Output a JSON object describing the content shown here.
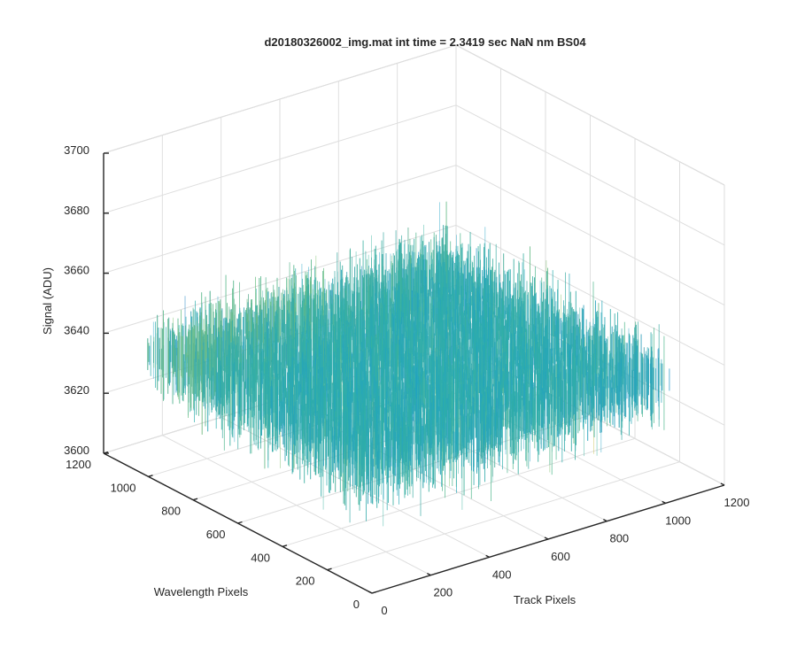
{
  "chart_data": {
    "type": "surface",
    "title": "d20180326002_img.mat int time = 2.3419 sec  NaN nm BS04",
    "xlabel": "Track Pixels",
    "ylabel": "Wavelength Pixels",
    "zlabel": "Signal (ADU)",
    "x_ticks": [
      "0",
      "200",
      "400",
      "600",
      "800",
      "1000",
      "1200"
    ],
    "y_ticks": [
      "0",
      "200",
      "400",
      "600",
      "800",
      "1000",
      "1200"
    ],
    "z_ticks": [
      "3600",
      "3620",
      "3640",
      "3660",
      "3680",
      "3700"
    ],
    "xlim": [
      0,
      1200
    ],
    "ylim": [
      0,
      1200
    ],
    "zlim": [
      3600,
      3700
    ],
    "x_extent": [
      0,
      1024
    ],
    "y_extent": [
      0,
      1024
    ],
    "mean_signal": 3641,
    "noise_range": [
      3608,
      3690
    ],
    "grid": true,
    "colormap": "parula",
    "colors": [
      "#0072bd",
      "#1fa3c7",
      "#35b39f",
      "#7bbf6a",
      "#c6be4d",
      "#e8c34a"
    ]
  }
}
